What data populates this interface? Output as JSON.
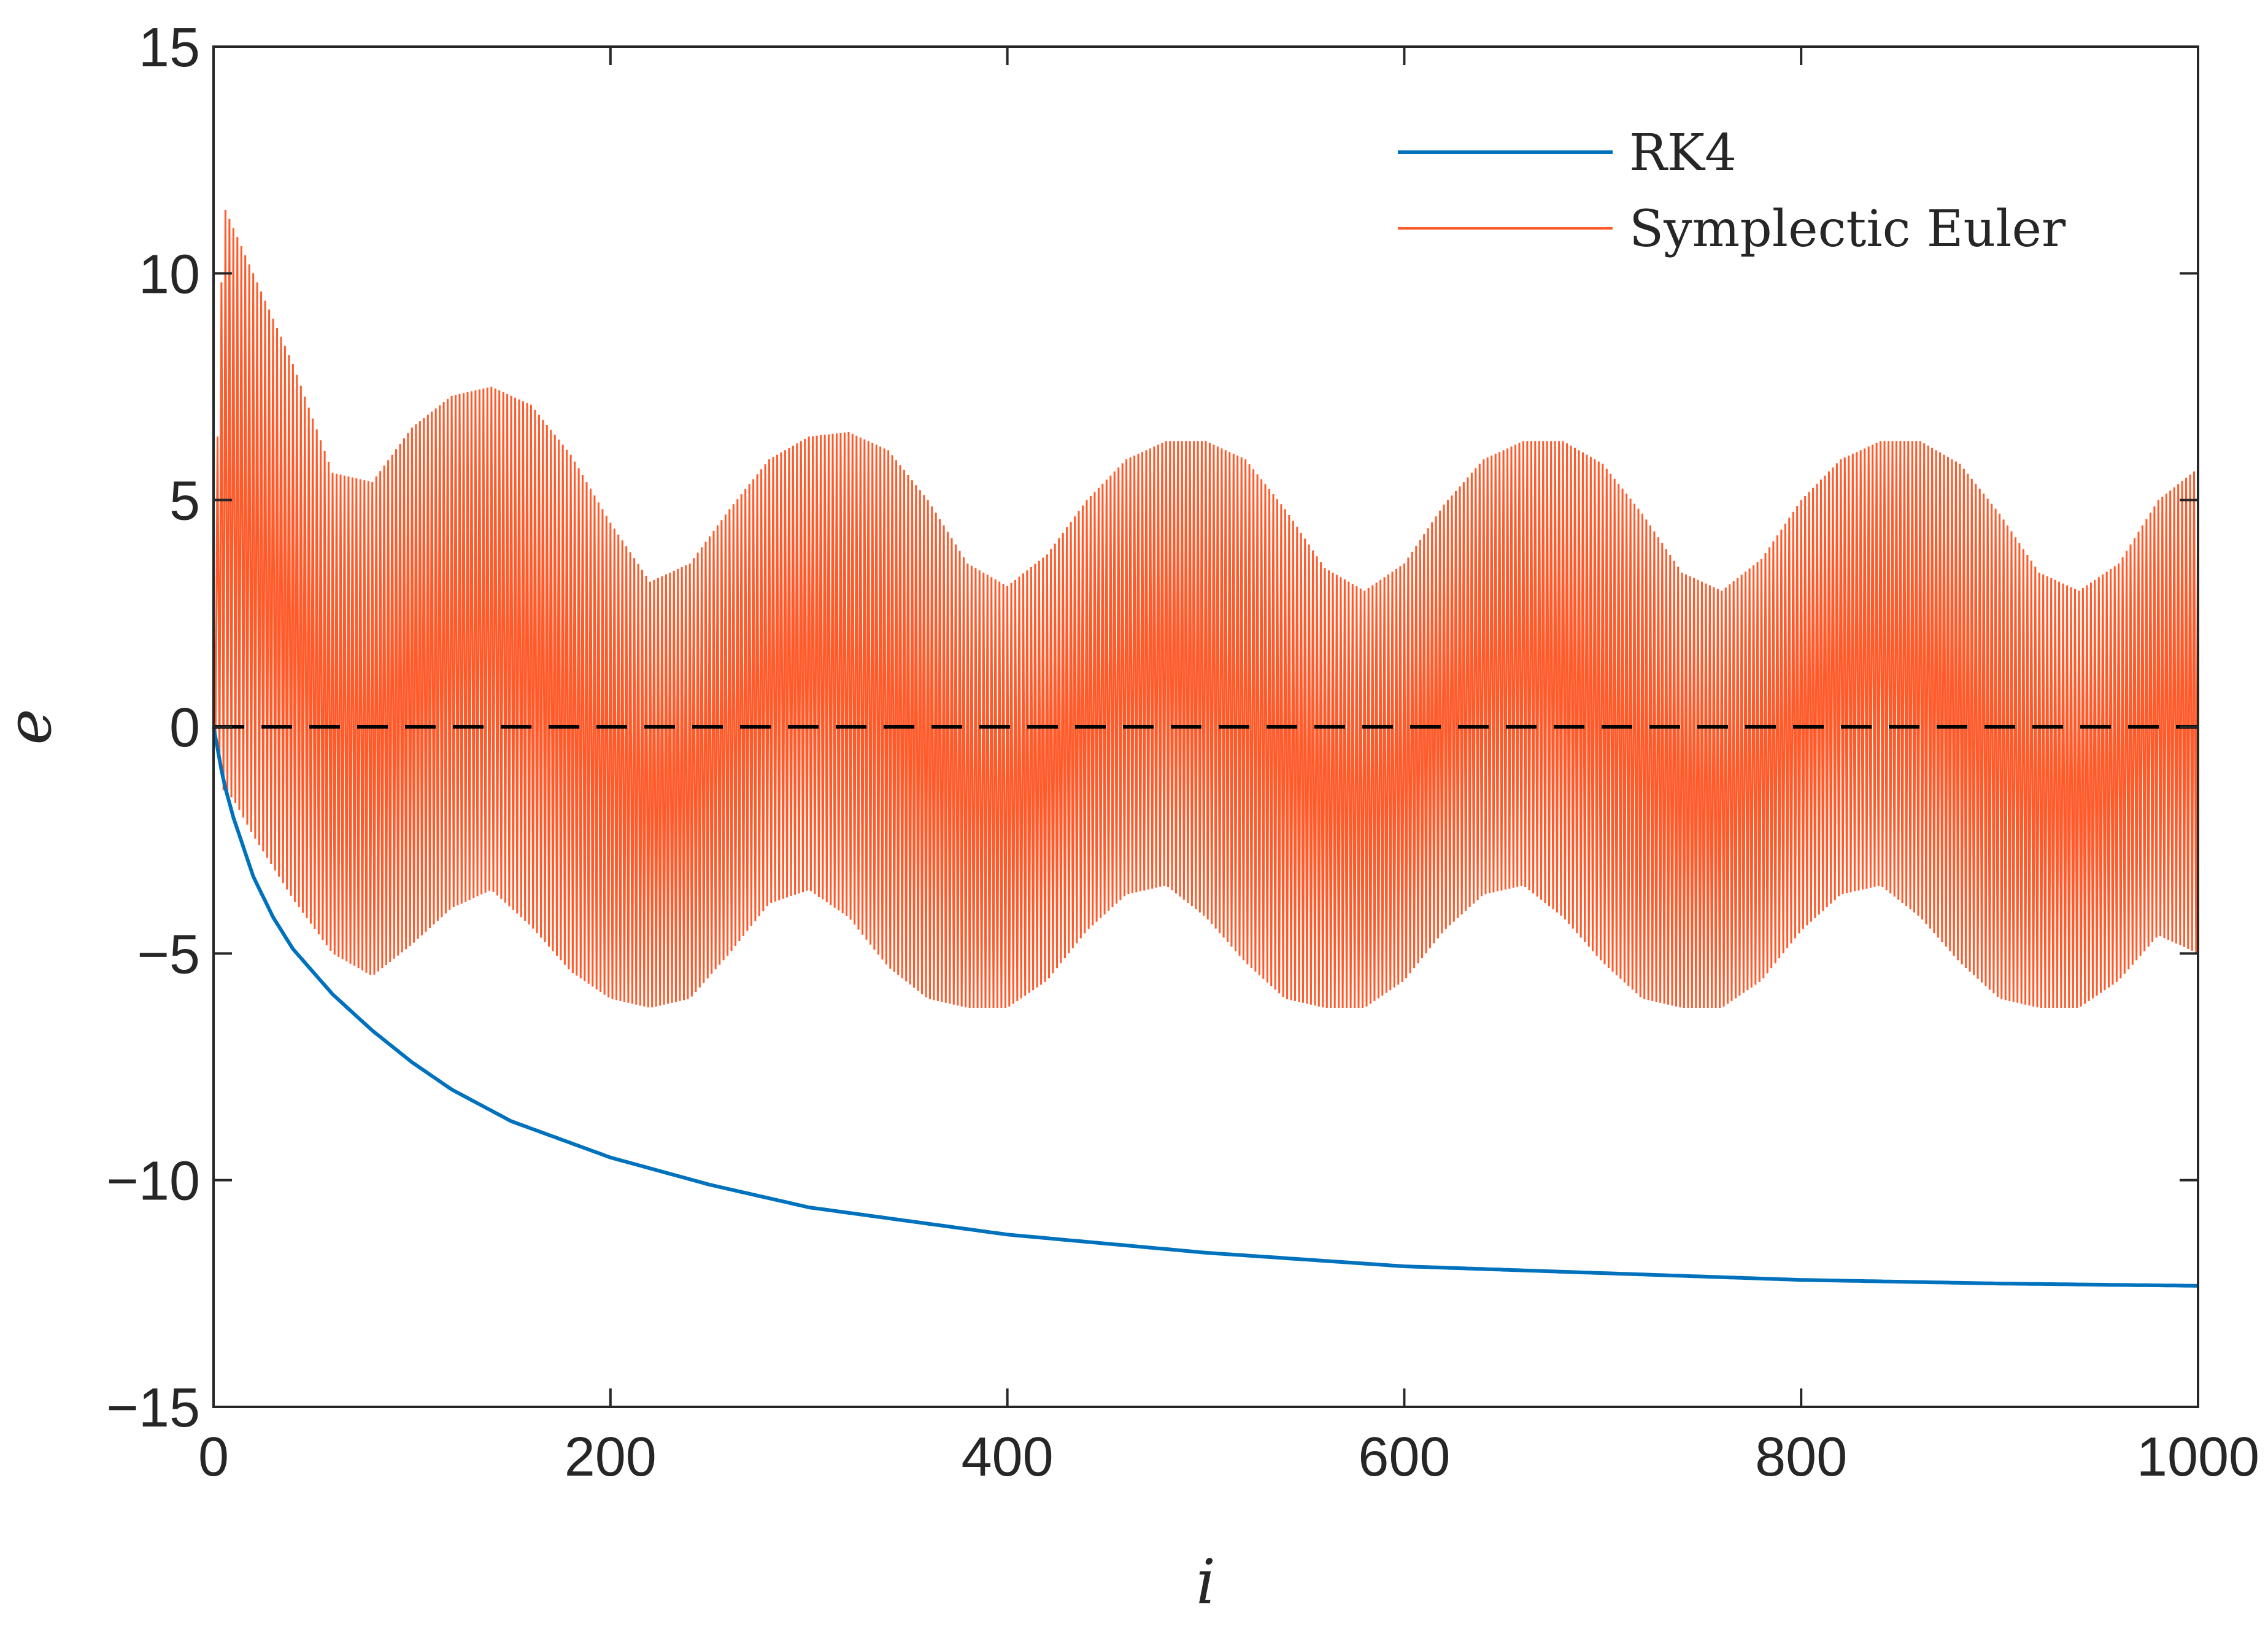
{
  "chart_data": {
    "type": "line",
    "title": "",
    "xlabel": "i",
    "ylabel": "e",
    "xlim": [
      0,
      1000
    ],
    "ylim": [
      -15,
      15
    ],
    "xticks": [
      0,
      200,
      400,
      600,
      800,
      1000
    ],
    "xtick_labels": [
      "0",
      "200",
      "400",
      "600",
      "800",
      "1000"
    ],
    "yticks": [
      -15,
      -10,
      -5,
      0,
      5,
      10,
      15
    ],
    "ytick_labels": [
      "−15",
      "−10",
      "−5",
      "0",
      "5",
      "10",
      "15"
    ],
    "grid": false,
    "legend_position": "top-right",
    "reference_line": {
      "y": 0,
      "style": "dashed",
      "color": "#000000"
    },
    "series": [
      {
        "name": "RK4",
        "color": "#0072BD",
        "x": [
          0,
          5,
          10,
          20,
          30,
          40,
          50,
          60,
          80,
          100,
          120,
          150,
          200,
          250,
          300,
          350,
          400,
          450,
          500,
          600,
          700,
          800,
          900,
          1000
        ],
        "y": [
          0,
          -1.2,
          -2.0,
          -3.3,
          -4.2,
          -4.9,
          -5.4,
          -5.9,
          -6.7,
          -7.4,
          -8.0,
          -8.7,
          -9.5,
          -10.1,
          -10.6,
          -10.9,
          -11.2,
          -11.4,
          -11.6,
          -11.9,
          -12.05,
          -12.2,
          -12.28,
          -12.33
        ]
      },
      {
        "name": "Symplectic Euler",
        "color": "#FF5A2A",
        "samples": 1000,
        "envelope_x": [
          0,
          5,
          10,
          20,
          40,
          60,
          80,
          100,
          120,
          140,
          160,
          180,
          200,
          220,
          240,
          260,
          280,
          300,
          320,
          340,
          360,
          380,
          400,
          420,
          440,
          460,
          480,
          500,
          520,
          540,
          560,
          580,
          600,
          620,
          640,
          660,
          680,
          700,
          720,
          740,
          760,
          780,
          800,
          820,
          840,
          860,
          880,
          900,
          920,
          940,
          960,
          980,
          1000
        ],
        "upper": [
          3.0,
          11.5,
          11.0,
          10.0,
          8.0,
          5.6,
          5.4,
          6.6,
          7.3,
          7.5,
          7.1,
          6.0,
          4.5,
          3.2,
          3.6,
          4.8,
          5.9,
          6.4,
          6.5,
          6.1,
          5.0,
          3.6,
          3.1,
          3.8,
          5.0,
          5.9,
          6.3,
          6.3,
          5.9,
          4.8,
          3.5,
          3.0,
          3.6,
          4.9,
          5.9,
          6.3,
          6.3,
          5.8,
          4.7,
          3.4,
          3.0,
          3.7,
          5.0,
          5.9,
          6.3,
          6.3,
          5.8,
          4.7,
          3.4,
          3.0,
          3.6,
          5.0,
          5.7
        ],
        "lower": [
          0.0,
          -1.4,
          -1.6,
          -2.4,
          -3.8,
          -5.0,
          -5.5,
          -4.8,
          -4.0,
          -3.6,
          -4.4,
          -5.4,
          -6.0,
          -6.2,
          -6.0,
          -5.0,
          -3.9,
          -3.6,
          -4.2,
          -5.3,
          -6.0,
          -6.2,
          -6.2,
          -5.6,
          -4.5,
          -3.7,
          -3.5,
          -4.2,
          -5.2,
          -6.0,
          -6.2,
          -6.2,
          -5.6,
          -4.5,
          -3.7,
          -3.5,
          -4.2,
          -5.2,
          -6.0,
          -6.2,
          -6.2,
          -5.6,
          -4.5,
          -3.7,
          -3.5,
          -4.2,
          -5.2,
          -6.0,
          -6.2,
          -6.2,
          -5.6,
          -4.6,
          -5.0
        ]
      }
    ]
  }
}
